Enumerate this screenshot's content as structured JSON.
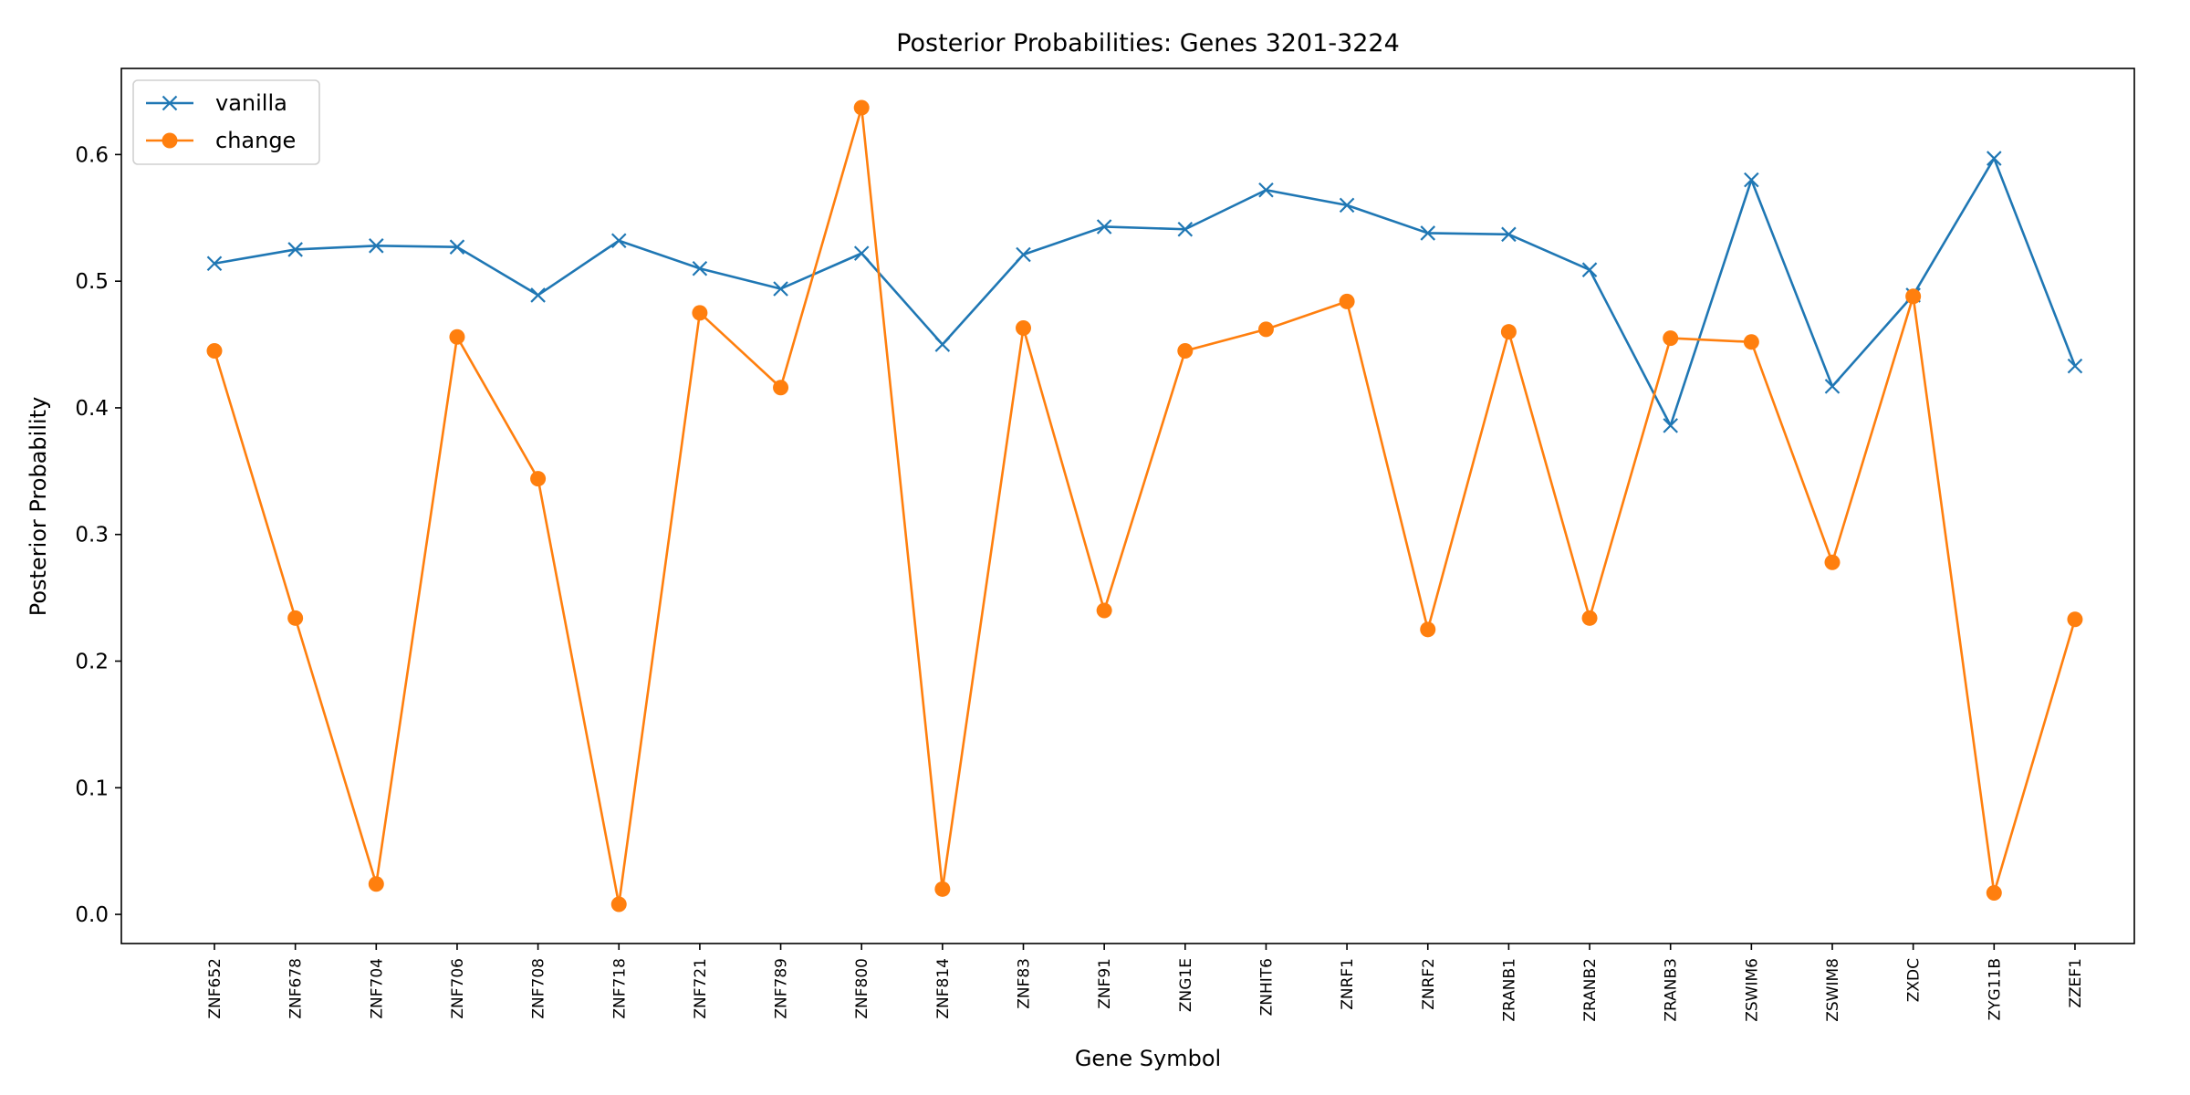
{
  "chart_data": {
    "type": "line",
    "title": "Posterior Probabilities: Genes 3201-3224",
    "xlabel": "Gene Symbol",
    "ylabel": "Posterior Probability",
    "categories": [
      "ZNF652",
      "ZNF678",
      "ZNF704",
      "ZNF706",
      "ZNF708",
      "ZNF718",
      "ZNF721",
      "ZNF789",
      "ZNF800",
      "ZNF814",
      "ZNF83",
      "ZNF91",
      "ZNG1E",
      "ZNHIT6",
      "ZNRF1",
      "ZNRF2",
      "ZRANB1",
      "ZRANB2",
      "ZRANB3",
      "ZSWIM6",
      "ZSWIM8",
      "ZXDC",
      "ZYG11B",
      "ZZEF1"
    ],
    "ylim": [
      -0.023,
      0.668
    ],
    "yticks": [
      0.0,
      0.1,
      0.2,
      0.3,
      0.4,
      0.5,
      0.6
    ],
    "ytick_labels": [
      "0.0",
      "0.1",
      "0.2",
      "0.3",
      "0.4",
      "0.5",
      "0.6"
    ],
    "grid": false,
    "legend": "top-left",
    "series": [
      {
        "name": "vanilla",
        "color": "#1f77b4",
        "marker": "x",
        "values": [
          0.514,
          0.525,
          0.528,
          0.527,
          0.489,
          0.532,
          0.51,
          0.494,
          0.522,
          0.45,
          0.521,
          0.543,
          0.541,
          0.572,
          0.56,
          0.538,
          0.537,
          0.509,
          0.386,
          0.58,
          0.417,
          0.489,
          0.597,
          0.433
        ]
      },
      {
        "name": "change",
        "color": "#ff7f0e",
        "marker": "o",
        "values": [
          0.445,
          0.234,
          0.024,
          0.456,
          0.344,
          0.008,
          0.475,
          0.416,
          0.637,
          0.02,
          0.463,
          0.24,
          0.445,
          0.462,
          0.484,
          0.225,
          0.46,
          0.234,
          0.455,
          0.452,
          0.278,
          0.488,
          0.017,
          0.233
        ]
      }
    ]
  }
}
